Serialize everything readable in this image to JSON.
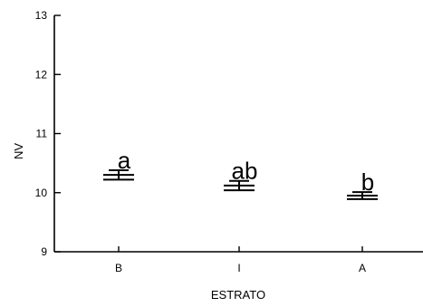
{
  "chart_data": {
    "type": "errorbar",
    "xlabel": "ESTRATO",
    "ylabel": "NV",
    "ylim": [
      9,
      13
    ],
    "yticks": [
      9,
      10,
      11,
      12,
      13
    ],
    "categories": [
      "B",
      "I",
      "A"
    ],
    "series": [
      {
        "values": [
          10.3,
          10.12,
          9.95
        ],
        "error": [
          0.08,
          0.08,
          0.06
        ],
        "labels": [
          "a",
          "ab",
          "b"
        ]
      }
    ]
  }
}
